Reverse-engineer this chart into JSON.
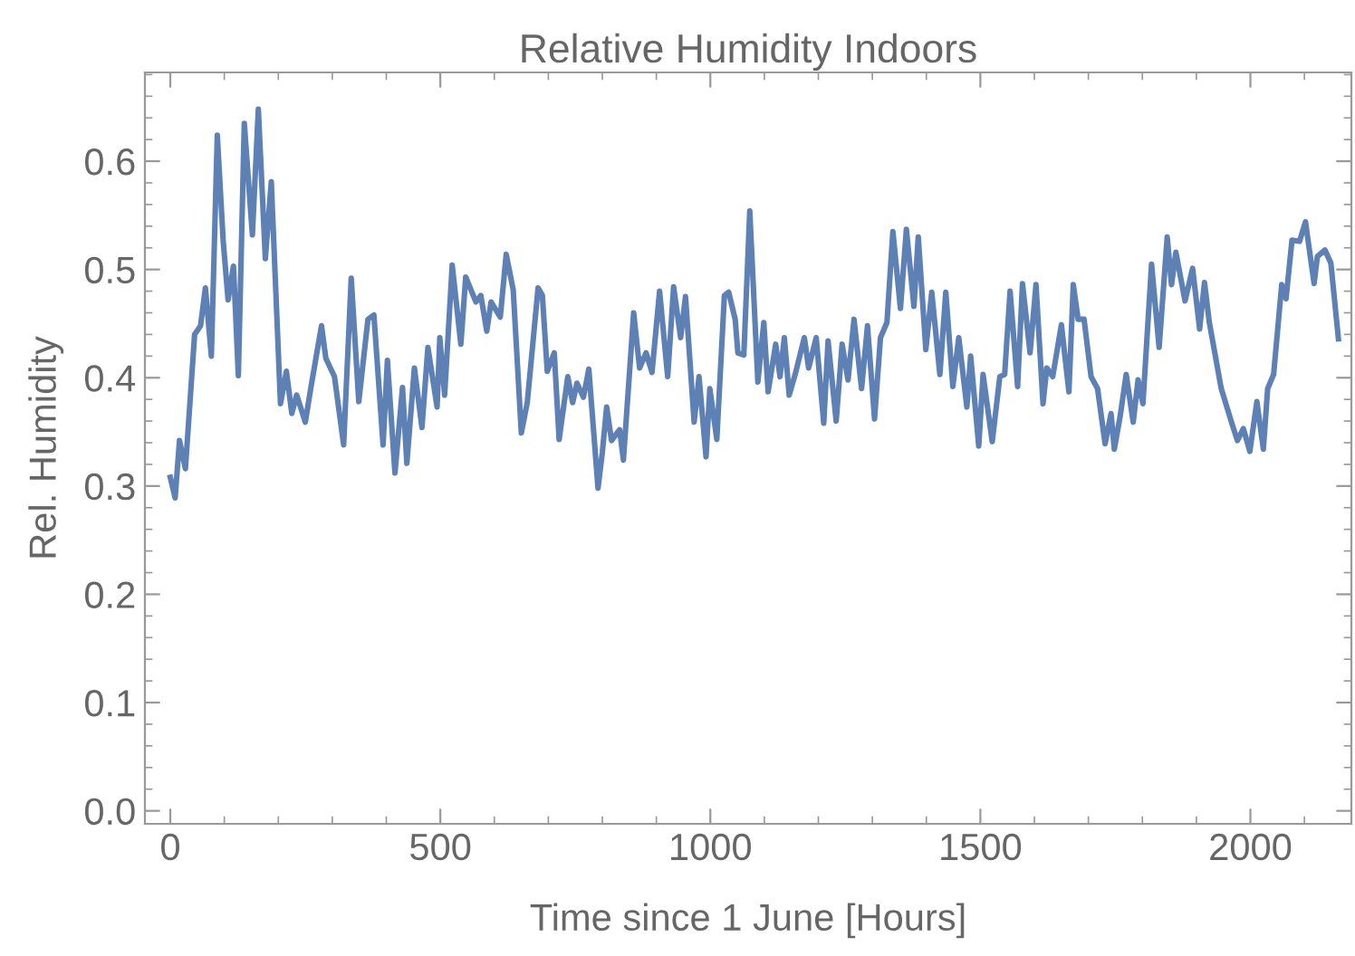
{
  "chart_data": {
    "type": "line",
    "title": "Relative Humidity Indoors",
    "xlabel": "Time since 1 June [Hours]",
    "ylabel": "Rel. Humidity",
    "xlim": [
      -47,
      2187
    ],
    "ylim": [
      -0.012,
      0.682
    ],
    "xticks": [
      0,
      500,
      1000,
      1500,
      2000
    ],
    "yticks": [
      {
        "value": 0,
        "label": "0.0"
      },
      {
        "value": 0.1,
        "label": "0.1"
      },
      {
        "value": 0.2,
        "label": "0.2"
      },
      {
        "value": 0.3,
        "label": "0.3"
      },
      {
        "value": 0.4,
        "label": "0.4"
      },
      {
        "value": 0.5,
        "label": "0.5"
      },
      {
        "value": 0.6,
        "label": "0.6"
      }
    ],
    "grid": false,
    "marker": "none",
    "line_style": "solid",
    "series": [
      {
        "color": "#5e81b5",
        "x": [
          0,
          9,
          17,
          28,
          45,
          56,
          65,
          76,
          87,
          98,
          107,
          117,
          126,
          137,
          152,
          163,
          176,
          187,
          204,
          215,
          225,
          234,
          250,
          260,
          280,
          288,
          304,
          321,
          335,
          349,
          366,
          377,
          394,
          402,
          416,
          430,
          438,
          452,
          466,
          477,
          494,
          499,
          508,
          522,
          538,
          547,
          566,
          575,
          586,
          594,
          611,
          622,
          635,
          650,
          661,
          681,
          689,
          698,
          711,
          720,
          736,
          745,
          753,
          765,
          775,
          792,
          800,
          808,
          817,
          832,
          839,
          858,
          869,
          881,
          892,
          906,
          921,
          932,
          945,
          954,
          970,
          979,
          992,
          999,
          1012,
          1026,
          1034,
          1046,
          1051,
          1062,
          1073,
          1088,
          1099,
          1107,
          1121,
          1129,
          1137,
          1146,
          1157,
          1174,
          1182,
          1196,
          1210,
          1218,
          1233,
          1244,
          1255,
          1266,
          1280,
          1291,
          1304,
          1315,
          1327,
          1338,
          1352,
          1363,
          1377,
          1385,
          1399,
          1410,
          1425,
          1436,
          1449,
          1460,
          1475,
          1482,
          1497,
          1505,
          1522,
          1536,
          1545,
          1555,
          1569,
          1578,
          1592,
          1603,
          1616,
          1623,
          1634,
          1650,
          1664,
          1672,
          1681,
          1692,
          1705,
          1717,
          1731,
          1742,
          1748,
          1759,
          1770,
          1783,
          1792,
          1801,
          1817,
          1831,
          1846,
          1854,
          1862,
          1879,
          1893,
          1906,
          1915,
          1924,
          1946,
          1965,
          1976,
          1987,
          1999,
          2012,
          2024,
          2032,
          2043,
          2058,
          2066,
          2077,
          2091,
          2102,
          2118,
          2124,
          2138,
          2149,
          2163
        ],
        "values": [
          0.308,
          0.289,
          0.342,
          0.316,
          0.44,
          0.448,
          0.483,
          0.42,
          0.624,
          0.526,
          0.472,
          0.503,
          0.402,
          0.635,
          0.532,
          0.648,
          0.51,
          0.581,
          0.376,
          0.406,
          0.367,
          0.384,
          0.359,
          0.39,
          0.448,
          0.418,
          0.401,
          0.338,
          0.492,
          0.378,
          0.454,
          0.458,
          0.338,
          0.416,
          0.312,
          0.391,
          0.321,
          0.409,
          0.354,
          0.428,
          0.373,
          0.437,
          0.384,
          0.504,
          0.431,
          0.493,
          0.47,
          0.476,
          0.443,
          0.47,
          0.456,
          0.514,
          0.481,
          0.349,
          0.377,
          0.483,
          0.476,
          0.406,
          0.423,
          0.343,
          0.401,
          0.377,
          0.395,
          0.382,
          0.408,
          0.298,
          0.331,
          0.373,
          0.342,
          0.352,
          0.324,
          0.46,
          0.409,
          0.423,
          0.405,
          0.48,
          0.401,
          0.484,
          0.437,
          0.475,
          0.359,
          0.401,
          0.327,
          0.39,
          0.343,
          0.476,
          0.479,
          0.454,
          0.423,
          0.421,
          0.554,
          0.396,
          0.451,
          0.387,
          0.431,
          0.401,
          0.437,
          0.384,
          0.403,
          0.437,
          0.409,
          0.437,
          0.358,
          0.434,
          0.36,
          0.431,
          0.398,
          0.454,
          0.39,
          0.448,
          0.362,
          0.437,
          0.451,
          0.535,
          0.464,
          0.537,
          0.466,
          0.53,
          0.426,
          0.479,
          0.403,
          0.479,
          0.392,
          0.437,
          0.373,
          0.42,
          0.337,
          0.403,
          0.341,
          0.401,
          0.403,
          0.48,
          0.392,
          0.487,
          0.423,
          0.486,
          0.376,
          0.409,
          0.401,
          0.449,
          0.387,
          0.486,
          0.454,
          0.454,
          0.401,
          0.39,
          0.339,
          0.367,
          0.334,
          0.365,
          0.403,
          0.359,
          0.398,
          0.376,
          0.505,
          0.428,
          0.53,
          0.486,
          0.516,
          0.471,
          0.501,
          0.445,
          0.488,
          0.451,
          0.39,
          0.359,
          0.342,
          0.353,
          0.332,
          0.378,
          0.334,
          0.39,
          0.403,
          0.486,
          0.473,
          0.527,
          0.526,
          0.544,
          0.487,
          0.512,
          0.518,
          0.506,
          0.436
        ]
      }
    ]
  }
}
